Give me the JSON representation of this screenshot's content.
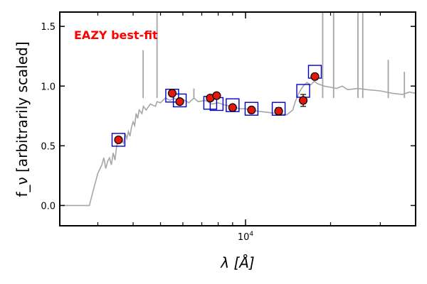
{
  "chart_data": {
    "type": "scatter",
    "title": "",
    "annotation": "EAZY best-fit",
    "xlabel": "λ [Å]",
    "ylabel": "f_ν [arbitrarily scaled]",
    "x_scale": "log",
    "xlim": [
      2200,
      40000
    ],
    "ylim": [
      -0.17,
      1.62
    ],
    "y_ticks": [
      0.0,
      0.5,
      1.0,
      1.5
    ],
    "y_tick_labels": [
      "0.0",
      "0.5",
      "1.0",
      "1.5"
    ],
    "x_major_ticks": [
      10000
    ],
    "x_tick_labels": [
      "10^4"
    ],
    "x_minor_ticks": [
      3000,
      4000,
      5000,
      6000,
      7000,
      8000,
      9000,
      20000,
      30000
    ],
    "grid": false,
    "colors": {
      "observed": "#e2170d",
      "observed_edge": "#000000",
      "model_points": "#0000cc",
      "template": "#a6a6a6",
      "annotation": "#ff0000"
    },
    "series": [
      {
        "marker": "circle",
        "role": "observed",
        "points": [
          {
            "x": 3550,
            "y": 0.55,
            "err": 0.02
          },
          {
            "x": 5500,
            "y": 0.94,
            "err": 0.02
          },
          {
            "x": 5850,
            "y": 0.87,
            "err": 0.02
          },
          {
            "x": 7500,
            "y": 0.9,
            "err": 0.02
          },
          {
            "x": 7900,
            "y": 0.92,
            "err": 0.02
          },
          {
            "x": 9000,
            "y": 0.82,
            "err": 0.02
          },
          {
            "x": 10500,
            "y": 0.8,
            "err": 0.02
          },
          {
            "x": 13100,
            "y": 0.79,
            "err": 0.03
          },
          {
            "x": 16000,
            "y": 0.88,
            "err": 0.05
          },
          {
            "x": 17600,
            "y": 1.08,
            "err": 0.02
          }
        ]
      },
      {
        "marker": "square",
        "role": "model",
        "points": [
          {
            "x": 3550,
            "y": 0.55
          },
          {
            "x": 5500,
            "y": 0.92
          },
          {
            "x": 5850,
            "y": 0.88
          },
          {
            "x": 7500,
            "y": 0.86
          },
          {
            "x": 7900,
            "y": 0.85
          },
          {
            "x": 9000,
            "y": 0.84
          },
          {
            "x": 10500,
            "y": 0.81
          },
          {
            "x": 13100,
            "y": 0.81
          },
          {
            "x": 16000,
            "y": 0.96
          },
          {
            "x": 17600,
            "y": 1.12
          }
        ]
      },
      {
        "marker": "line",
        "role": "template",
        "points": [
          [
            2200,
            0.0
          ],
          [
            2800,
            0.0
          ],
          [
            2900,
            0.14
          ],
          [
            3000,
            0.27
          ],
          [
            3100,
            0.34
          ],
          [
            3150,
            0.4
          ],
          [
            3200,
            0.31
          ],
          [
            3250,
            0.37
          ],
          [
            3300,
            0.4
          ],
          [
            3350,
            0.34
          ],
          [
            3400,
            0.44
          ],
          [
            3450,
            0.38
          ],
          [
            3500,
            0.5
          ],
          [
            3600,
            0.57
          ],
          [
            3700,
            0.52
          ],
          [
            3750,
            0.6
          ],
          [
            3800,
            0.56
          ],
          [
            3850,
            0.62
          ],
          [
            3900,
            0.58
          ],
          [
            3950,
            0.66
          ],
          [
            4000,
            0.7
          ],
          [
            4050,
            0.67
          ],
          [
            4100,
            0.77
          ],
          [
            4150,
            0.73
          ],
          [
            4200,
            0.8
          ],
          [
            4300,
            0.77
          ],
          [
            4350,
            0.83
          ],
          [
            4450,
            0.8
          ],
          [
            4600,
            0.85
          ],
          [
            4800,
            0.83
          ],
          [
            4860,
            0.87
          ],
          [
            5000,
            0.86
          ],
          [
            5200,
            0.9
          ],
          [
            5400,
            0.88
          ],
          [
            5600,
            0.9
          ],
          [
            5800,
            0.87
          ],
          [
            6000,
            0.89
          ],
          [
            6300,
            0.86
          ],
          [
            6563,
            0.9
          ],
          [
            6800,
            0.87
          ],
          [
            7200,
            0.88
          ],
          [
            7600,
            0.85
          ],
          [
            8000,
            0.86
          ],
          [
            8500,
            0.84
          ],
          [
            9000,
            0.83
          ],
          [
            9500,
            0.81
          ],
          [
            10000,
            0.81
          ],
          [
            11000,
            0.79
          ],
          [
            12000,
            0.78
          ],
          [
            13000,
            0.77
          ],
          [
            14000,
            0.76
          ],
          [
            14700,
            0.8
          ],
          [
            15000,
            0.87
          ],
          [
            15500,
            0.95
          ],
          [
            16000,
            1.0
          ],
          [
            16500,
            1.03
          ],
          [
            17000,
            1.01
          ],
          [
            17500,
            1.04
          ],
          [
            18000,
            1.02
          ],
          [
            19000,
            1.0
          ],
          [
            20000,
            0.99
          ],
          [
            21000,
            0.98
          ],
          [
            22000,
            1.0
          ],
          [
            23000,
            0.97
          ],
          [
            25000,
            0.98
          ],
          [
            27000,
            0.97
          ],
          [
            30000,
            0.96
          ],
          [
            33000,
            0.94
          ],
          [
            36000,
            0.93
          ],
          [
            38000,
            0.95
          ],
          [
            40000,
            0.94
          ]
        ],
        "emission_lines": [
          {
            "x": 4340,
            "y": 1.3
          },
          {
            "x": 4861,
            "y": 1.62
          },
          {
            "x": 6563,
            "y": 0.98
          },
          {
            "x": 18750,
            "y": 1.62
          },
          {
            "x": 20500,
            "y": 1.62
          },
          {
            "x": 25000,
            "y": 1.62
          },
          {
            "x": 26000,
            "y": 1.62
          },
          {
            "x": 32000,
            "y": 1.22
          },
          {
            "x": 36500,
            "y": 1.12
          }
        ]
      }
    ]
  }
}
